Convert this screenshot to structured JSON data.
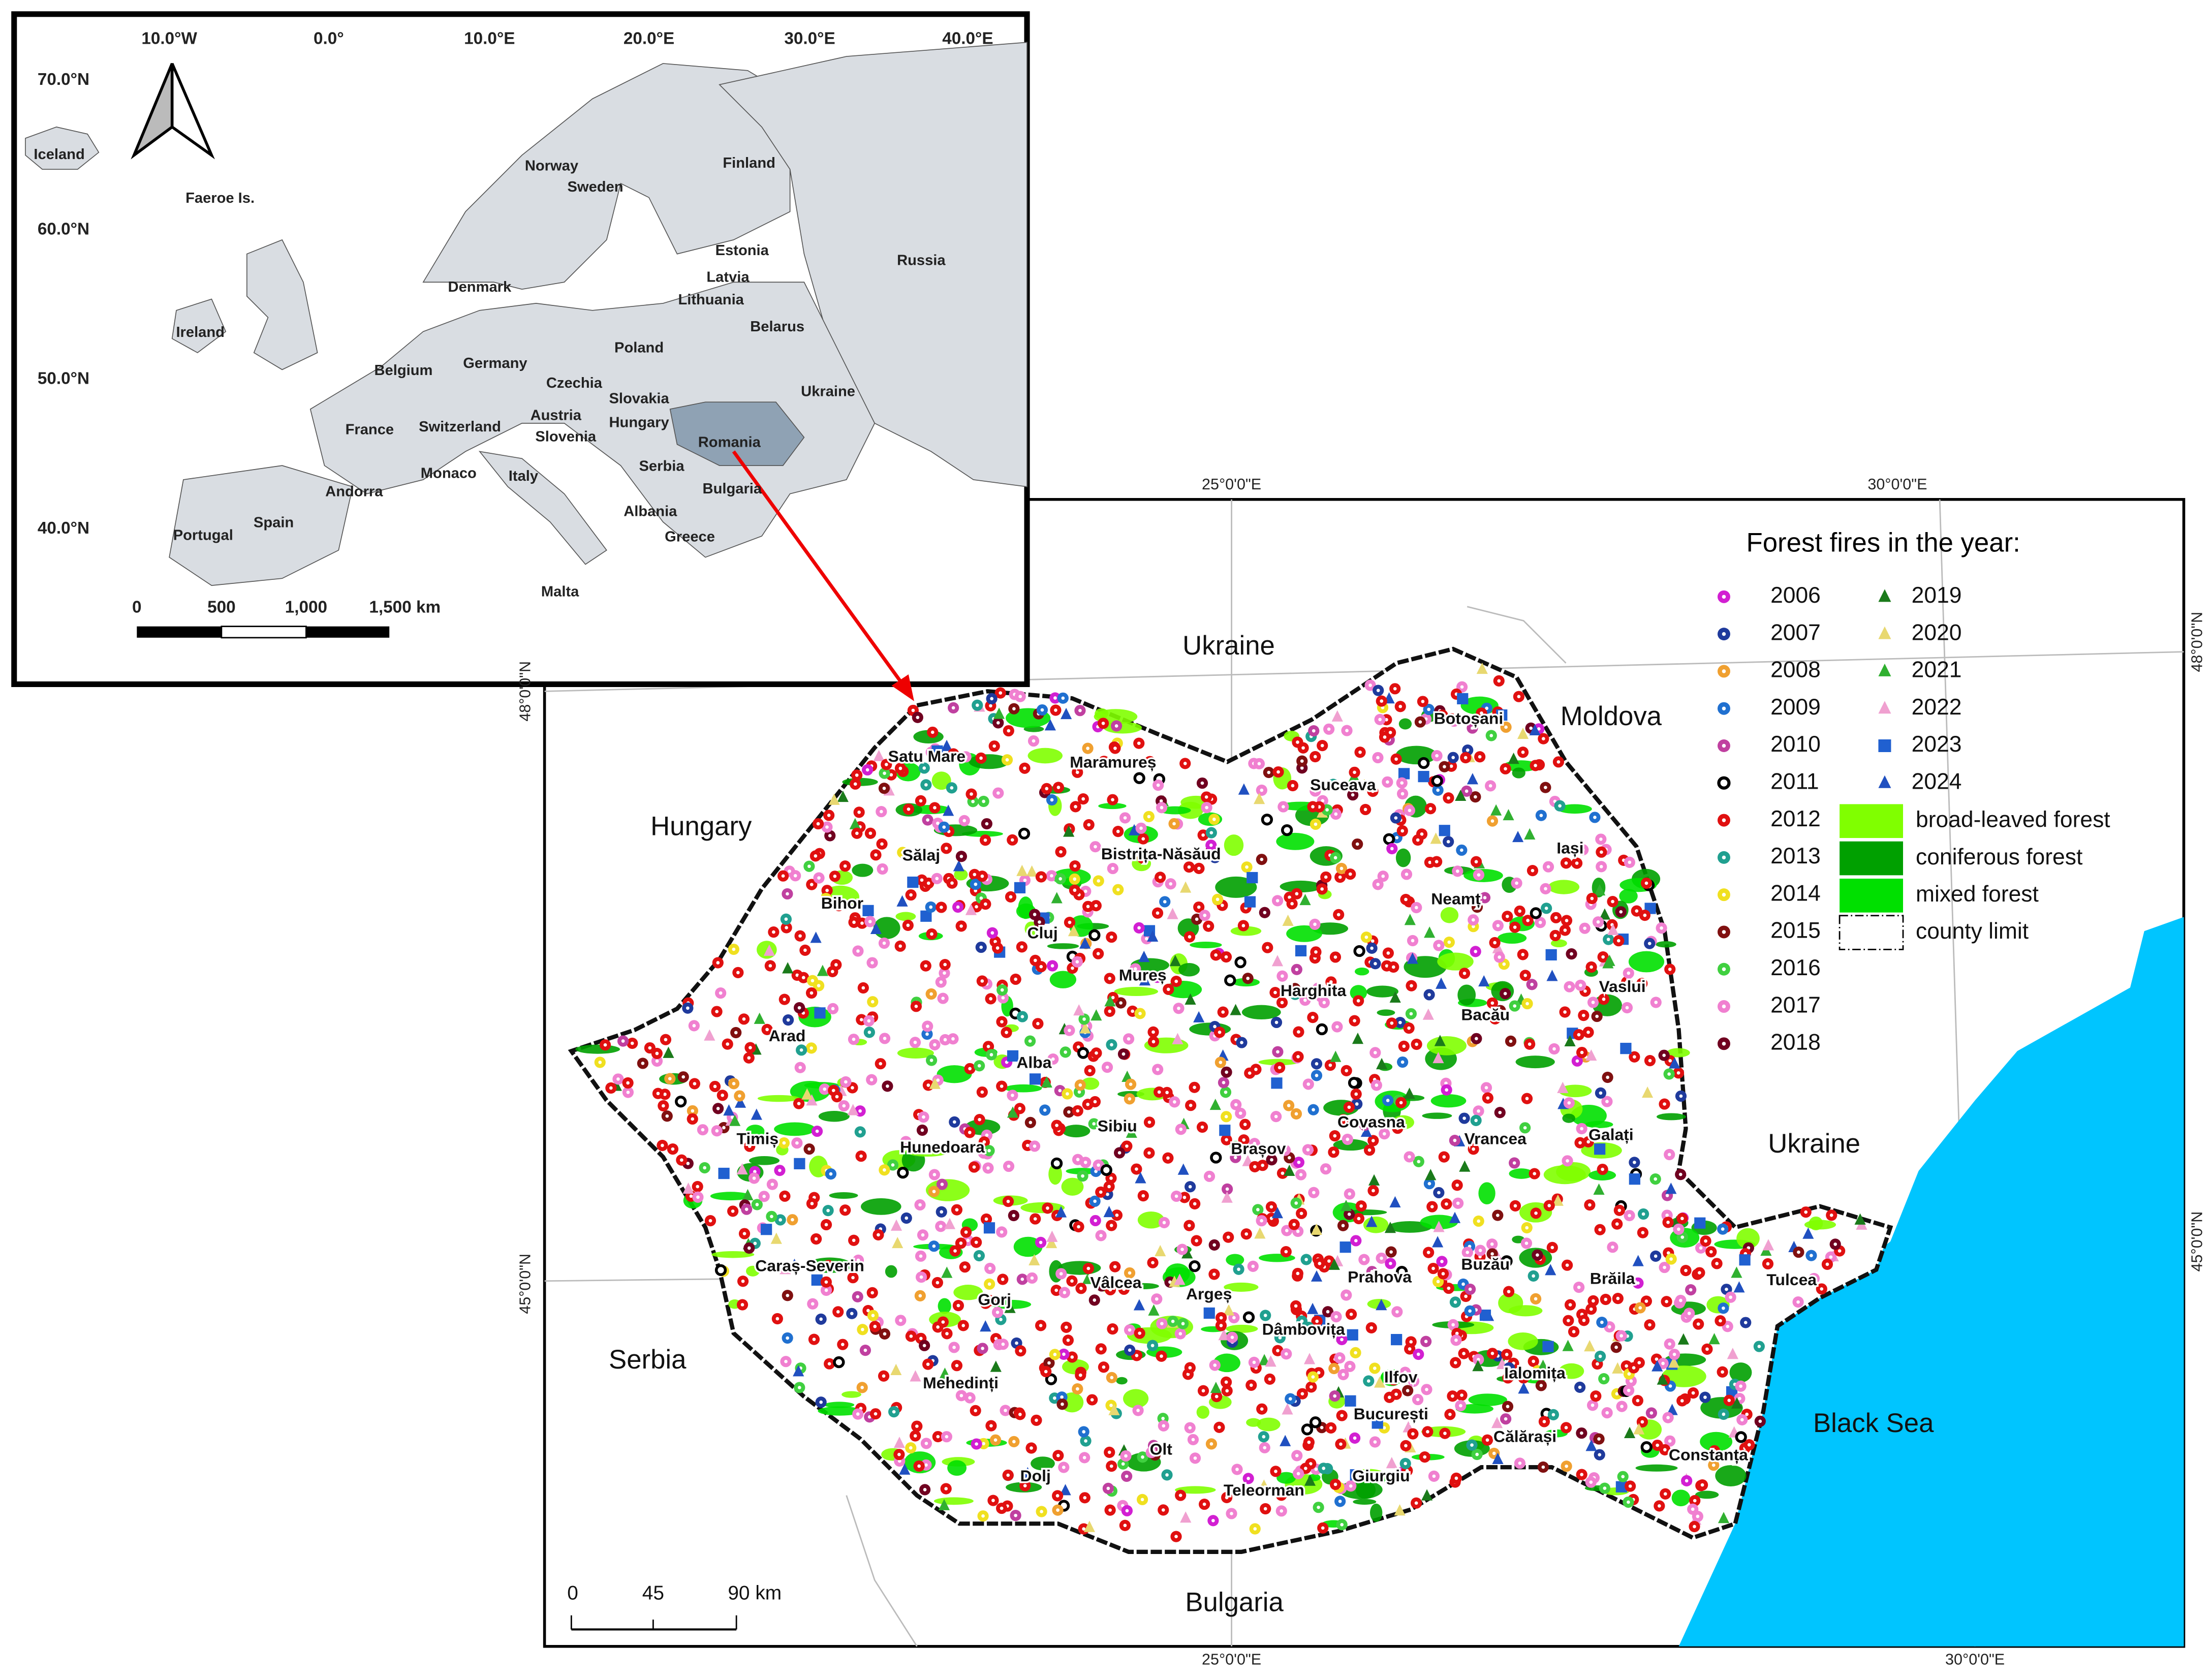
{
  "inset": {
    "lon_labels": [
      "10.0°W",
      "0.0°",
      "10.0°E",
      "20.0°E",
      "30.0°E",
      "40.0°E"
    ],
    "lat_labels": [
      "70.0°N",
      "60.0°N",
      "50.0°N",
      "40.0°N"
    ],
    "countries": [
      "Iceland",
      "Faeroe Is.",
      "Norway",
      "Sweden",
      "Finland",
      "Russia",
      "Estonia",
      "Latvia",
      "Lithuania",
      "Denmark",
      "Ireland",
      "Belarus",
      "Poland",
      "Germany",
      "Belgium",
      "Czechia",
      "Slovakia",
      "Ukraine",
      "Austria",
      "Hungary",
      "France",
      "Switzerland",
      "Slovenia",
      "Romania",
      "Serbia",
      "Monaco",
      "Italy",
      "Andorra",
      "Bulgaria",
      "Albania",
      "Spain",
      "Portugal",
      "Greece",
      "Malta"
    ],
    "scale": [
      "0",
      "500",
      "1,000",
      "1,500 km"
    ]
  },
  "main": {
    "graticule": [
      "25°0'0\"E",
      "30°0'0\"E",
      "25°0'0\"E",
      "30°0'0\"E",
      "48°0'0\"N",
      "45°0'0\"N",
      "48°0'0\"N",
      "45°0'0\"N"
    ],
    "neighbors": [
      "Ukraine",
      "Moldova",
      "Hungary",
      "Ukraine",
      "Serbia",
      "Black Sea",
      "Bulgaria"
    ],
    "counties": [
      "Satu Mare",
      "Maramureș",
      "Botoșani",
      "Suceava",
      "Iași",
      "Bistrița-Năsăud",
      "Sălaj",
      "Bihor",
      "Cluj",
      "Neamț",
      "Mureș",
      "Harghita",
      "Vaslui",
      "Bacău",
      "Arad",
      "Alba",
      "Covasna",
      "Sibiu",
      "Vrancea",
      "Galați",
      "Timiș",
      "Hunedoara",
      "Brașov",
      "Buzău",
      "Brăila",
      "Tulcea",
      "Caraș-Severin",
      "Gorj",
      "Vâlcea",
      "Argeș",
      "Prahova",
      "Dâmbovița",
      "Mehedinți",
      "Ilfov",
      "Ialomița",
      "București",
      "Călărași",
      "Constanța",
      "Olt",
      "Dolj",
      "Teleorman",
      "Giurgiu"
    ],
    "scale": [
      "0",
      "45",
      "90 km"
    ]
  },
  "legend": {
    "title": "Forest fires in the year:",
    "years": [
      {
        "label": "2006",
        "color": "#d21fd2",
        "shape": "circle"
      },
      {
        "label": "2007",
        "color": "#1f3a9c",
        "shape": "circle"
      },
      {
        "label": "2008",
        "color": "#f0a030",
        "shape": "circle"
      },
      {
        "label": "2009",
        "color": "#2070d0",
        "shape": "circle"
      },
      {
        "label": "2010",
        "color": "#c040a0",
        "shape": "circle"
      },
      {
        "label": "2011",
        "color": "#000000",
        "shape": "ring"
      },
      {
        "label": "2012",
        "color": "#e01010",
        "shape": "circle"
      },
      {
        "label": "2013",
        "color": "#20a090",
        "shape": "circle"
      },
      {
        "label": "2014",
        "color": "#f0e020",
        "shape": "circle"
      },
      {
        "label": "2015",
        "color": "#801010",
        "shape": "circle"
      },
      {
        "label": "2016",
        "color": "#40d040",
        "shape": "circle"
      },
      {
        "label": "2017",
        "color": "#f080d0",
        "shape": "circle"
      },
      {
        "label": "2018",
        "color": "#700020",
        "shape": "circle"
      },
      {
        "label": "2019",
        "color": "#1a7a1a",
        "shape": "triangle"
      },
      {
        "label": "2020",
        "color": "#e8d870",
        "shape": "triangle"
      },
      {
        "label": "2021",
        "color": "#30b030",
        "shape": "triangle"
      },
      {
        "label": "2022",
        "color": "#f0a0d0",
        "shape": "triangle"
      },
      {
        "label": "2023",
        "color": "#2060d0",
        "shape": "square"
      },
      {
        "label": "2024",
        "color": "#2050c0",
        "shape": "triangle"
      }
    ],
    "forest": [
      {
        "label": "broad-leaved forest",
        "color": "#80ff00"
      },
      {
        "label": "coniferous forest",
        "color": "#00a000"
      },
      {
        "label": "mixed forest",
        "color": "#00e000"
      }
    ],
    "county_limit": "county limit"
  }
}
